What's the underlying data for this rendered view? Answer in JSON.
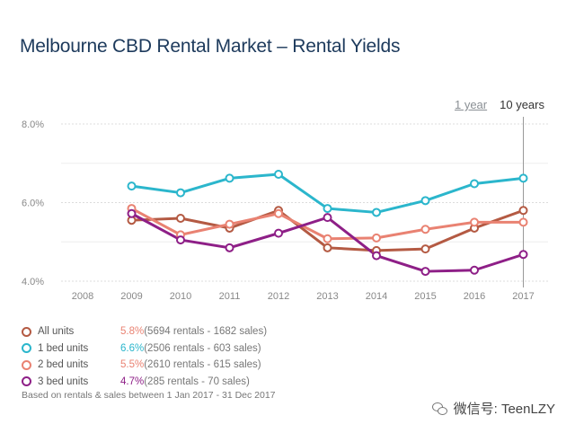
{
  "title": "Melbourne CBD Rental Market – Rental Yields",
  "range_toggle": {
    "option_1": "1 year",
    "option_2": "10 years",
    "selected": "10 years"
  },
  "chart_data": {
    "type": "line",
    "x": [
      "2008",
      "2009",
      "2010",
      "2011",
      "2012",
      "2013",
      "2014",
      "2015",
      "2016",
      "2017"
    ],
    "y_ticks": [
      "4.0%",
      "6.0%",
      "8.0%"
    ],
    "ylim": [
      4.0,
      8.0
    ],
    "grid": true,
    "series": [
      {
        "name": "All units",
        "color": "#b45a43",
        "values": [
          null,
          5.55,
          5.6,
          5.35,
          5.8,
          4.85,
          4.78,
          4.82,
          5.35,
          5.8
        ]
      },
      {
        "name": "1 bed units",
        "color": "#2bb6cc",
        "values": [
          null,
          6.42,
          6.25,
          6.62,
          6.72,
          5.85,
          5.75,
          6.05,
          6.48,
          6.62
        ]
      },
      {
        "name": "2 bed units",
        "color": "#e98272",
        "values": [
          null,
          5.85,
          5.18,
          5.45,
          5.72,
          5.08,
          5.1,
          5.32,
          5.5,
          5.5
        ]
      },
      {
        "name": "3 bed units",
        "color": "#8e1f87",
        "values": [
          null,
          5.72,
          5.05,
          4.85,
          5.22,
          5.62,
          4.65,
          4.25,
          4.28,
          4.68
        ]
      }
    ]
  },
  "legend": [
    {
      "name": "All units",
      "value": "5.8%",
      "detail": "(5694 rentals - 1682 sales)",
      "color": "#b45a43"
    },
    {
      "name": "1 bed units",
      "value": "6.6%",
      "detail": "(2506 rentals - 603 sales)",
      "color": "#2bb6cc"
    },
    {
      "name": "2 bed units",
      "value": "5.5%",
      "detail": "(2610 rentals - 615 sales)",
      "color": "#e98272"
    },
    {
      "name": "3 bed units",
      "value": "4.7%",
      "detail": "(285 rentals - 70 sales)",
      "color": "#8e1f87"
    }
  ],
  "footnote": "Based on rentals & sales between 1 Jan 2017 - 31 Dec 2017",
  "watermark": {
    "text": "微信号: TeenLZY",
    "icon": "wechat-icon"
  }
}
